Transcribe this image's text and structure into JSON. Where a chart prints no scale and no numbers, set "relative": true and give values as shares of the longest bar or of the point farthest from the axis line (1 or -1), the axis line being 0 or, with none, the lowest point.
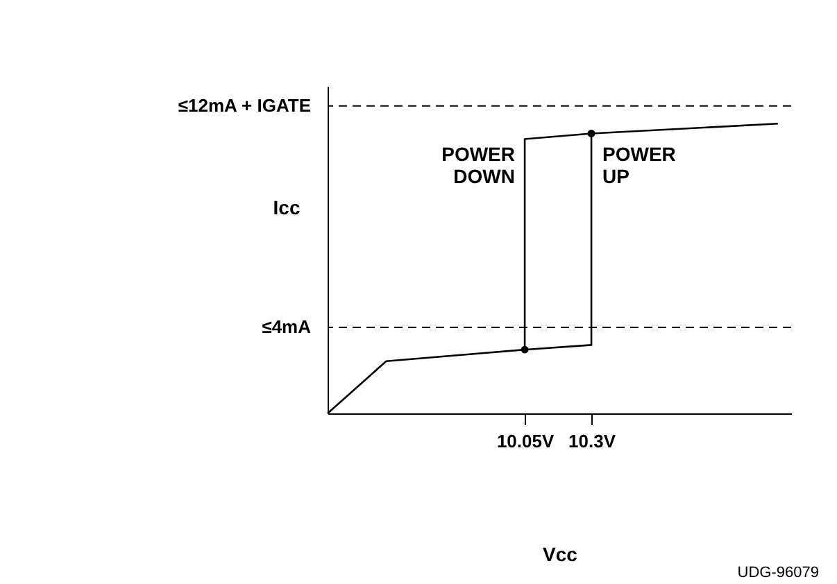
{
  "chart_data": {
    "type": "line",
    "xlabel": "Vcc",
    "ylabel": "Icc",
    "relative": true,
    "series": [
      {
        "color": "#000000",
        "x": [
          9.31,
          9.53,
          10.05,
          10.3,
          10.3,
          11.0
        ],
        "values": [
          0,
          0.18,
          0.22,
          0.236,
          0.966,
          1
        ]
      },
      {
        "color": "#000000",
        "x": [
          10.3,
          10.05,
          10.05
        ],
        "values": [
          0.966,
          0.947,
          0.22
        ]
      },
      {
        "type": "scatter",
        "marker": "circle",
        "color": "#000000",
        "x": [
          10.05,
          10.3
        ],
        "values": [
          0.22,
          0.966
        ]
      }
    ],
    "xlim": [
      9.31,
      11.05
    ],
    "xticks": [
      {
        "value": 10.05,
        "label": "10.05V"
      },
      {
        "value": 10.3,
        "label": "10.3V"
      }
    ],
    "ref_lines": [
      {
        "axis": "y",
        "value": 0.297,
        "label": "≤4mA",
        "line_style": "dashed"
      },
      {
        "axis": "y",
        "value": 1.061,
        "label": "≤12mA + IGATE",
        "line_style": "dashed"
      }
    ],
    "annotations": [
      "POWER DOWN",
      "POWER UP",
      "UDG-96079"
    ],
    "grid": false,
    "marker": "none",
    "line_style": "solid"
  }
}
